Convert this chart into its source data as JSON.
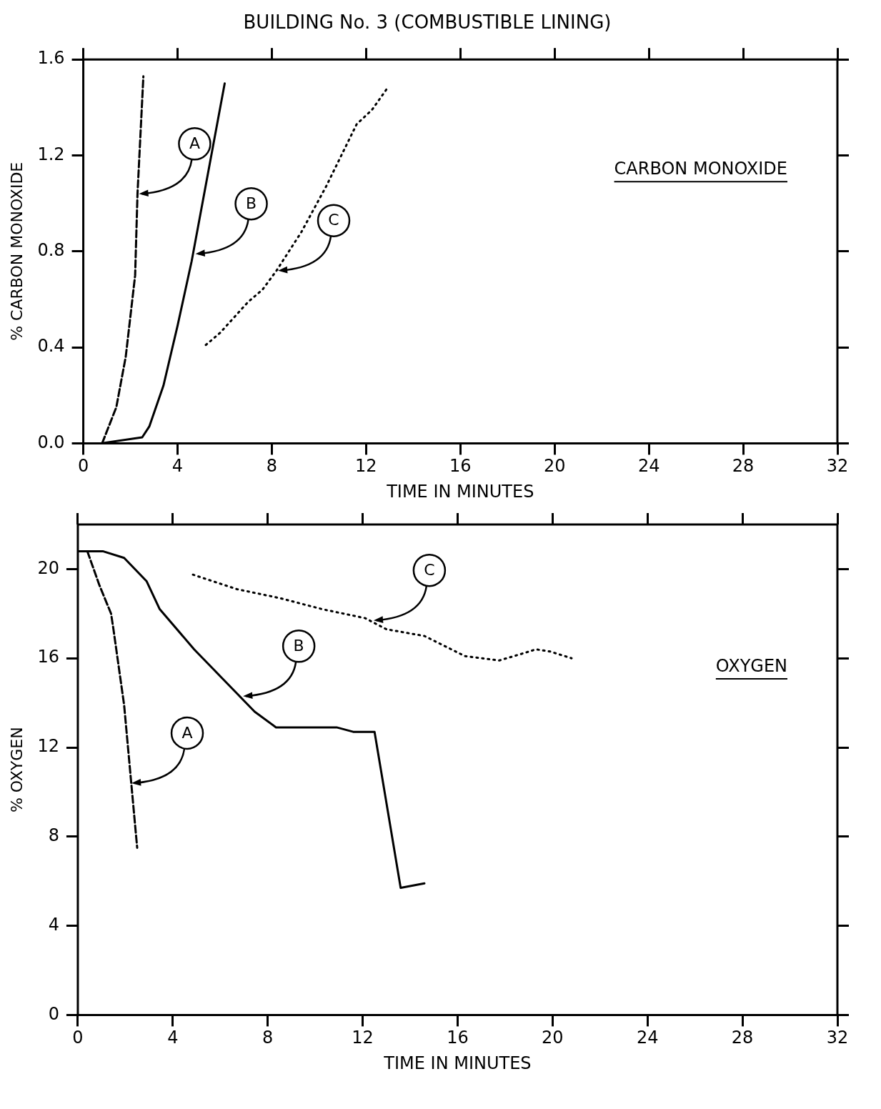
{
  "chart_data": [
    {
      "type": "line",
      "title": "BUILDING No. 3 (COMBUSTIBLE LINING)",
      "xlabel": "TIME IN MINUTES",
      "ylabel": "% CARBON MONOXIDE",
      "xlim": [
        0,
        32
      ],
      "xticks": [
        0,
        4,
        8,
        12,
        16,
        20,
        24,
        28,
        32
      ],
      "ylim": [
        0,
        1.6
      ],
      "yticks": [
        {
          "value": 0,
          "label": "0.0"
        },
        {
          "value": 0.4,
          "label": "0.4"
        },
        {
          "value": 0.8,
          "label": "0.8"
        },
        {
          "value": 1.2,
          "label": "1.2"
        },
        {
          "value": 1.6,
          "label": "1.6"
        }
      ],
      "grid": false,
      "legend": false,
      "marker": "none",
      "series": [
        {
          "color": "#000000",
          "line_style": "dashed",
          "x": [
            0.8,
            1.4,
            1.8,
            2.2,
            2.3,
            2.55
          ],
          "values": [
            0,
            0.15,
            0.36,
            0.7,
            1.04,
            1.53
          ]
        },
        {
          "color": "#000000",
          "line_style": "solid",
          "x": [
            0.75,
            2.5,
            2.8,
            3.4,
            4.0,
            4.6,
            6.0
          ],
          "values": [
            0,
            0.025,
            0.07,
            0.24,
            0.49,
            0.76,
            1.5
          ]
        },
        {
          "color": "#000000",
          "line_style": "dotted",
          "x": [
            5.2,
            5.8,
            7.0,
            7.6,
            8.2,
            9.25,
            10.3,
            11.6,
            12.25,
            12.9
          ],
          "values": [
            0.41,
            0.46,
            0.59,
            0.64,
            0.72,
            0.88,
            1.07,
            1.33,
            1.39,
            1.48
          ]
        }
      ],
      "annotations": [
        "CARBON MONOXIDE",
        {
          "text": "A",
          "x": 2.3,
          "y": 1.04
        },
        {
          "text": "B",
          "x": 4.7,
          "y": 0.79
        },
        {
          "text": "C",
          "x": 8.2,
          "y": 0.72
        }
      ]
    },
    {
      "type": "line",
      "xlabel": "TIME IN MINUTES",
      "ylabel": "% OXYGEN",
      "xlim": [
        0,
        32
      ],
      "xticks": [
        0,
        4,
        8,
        12,
        16,
        20,
        24,
        28,
        32
      ],
      "ylim": [
        0,
        22
      ],
      "yticks": [
        0,
        4,
        8,
        12,
        16,
        20
      ],
      "grid": false,
      "legend": false,
      "marker": "none",
      "series": [
        {
          "color": "#000000",
          "line_style": "dashed",
          "x": [
            0.4,
            0.9,
            1.4,
            1.5,
            1.95,
            2.25,
            2.5
          ],
          "values": [
            20.8,
            19.3,
            18.0,
            17.3,
            13.9,
            10.4,
            7.5
          ]
        },
        {
          "color": "#000000",
          "line_style": "solid",
          "x": [
            0,
            1.05,
            1.95,
            2.9,
            3.45,
            4.9,
            7.45,
            8.35,
            10.9,
            11.6,
            12.5,
            13.6,
            14.6
          ],
          "values": [
            20.8,
            20.8,
            20.5,
            19.45,
            18.2,
            16.4,
            13.6,
            12.9,
            12.9,
            12.7,
            12.7,
            5.7,
            5.9
          ]
        },
        {
          "color": "#000000",
          "line_style": "dotted",
          "x": [
            4.85,
            6.7,
            8.5,
            10.3,
            12.1,
            13.0,
            14.6,
            16.3,
            17.75,
            18.7,
            19.3,
            19.9,
            20.8
          ],
          "values": [
            19.75,
            19.1,
            18.7,
            18.2,
            17.8,
            17.3,
            17.0,
            16.1,
            15.9,
            16.2,
            16.4,
            16.3,
            16.0
          ]
        }
      ],
      "annotations": [
        "OXYGEN",
        {
          "text": "A",
          "x": 2.2,
          "y": 10.4
        },
        {
          "text": "B",
          "x": 6.9,
          "y": 14.3
        },
        {
          "text": "C",
          "x": 12.4,
          "y": 17.7
        }
      ]
    }
  ]
}
